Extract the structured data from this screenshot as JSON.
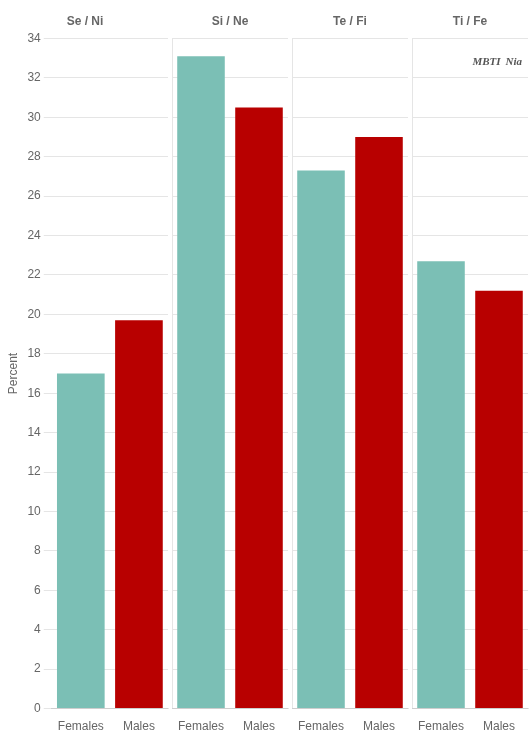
{
  "chart_data": [
    {
      "type": "bar",
      "title": "Se / Ni",
      "categories": [
        "Females",
        "Males"
      ],
      "values": [
        17.0,
        19.7
      ],
      "colors": [
        "#7BBFB5",
        "#B80000"
      ],
      "ylabel": "Percent",
      "ylim": [
        0,
        34
      ],
      "yticks": [
        0,
        2,
        4,
        6,
        8,
        10,
        12,
        14,
        16,
        18,
        20,
        22,
        24,
        26,
        28,
        30,
        32,
        34
      ],
      "grid": true
    },
    {
      "type": "bar",
      "title": "Si / Ne",
      "categories": [
        "Females",
        "Males"
      ],
      "values": [
        33.1,
        30.5
      ],
      "colors": [
        "#7BBFB5",
        "#B80000"
      ],
      "ylim": [
        0,
        34
      ],
      "yticks": [
        0,
        2,
        4,
        6,
        8,
        10,
        12,
        14,
        16,
        18,
        20,
        22,
        24,
        26,
        28,
        30,
        32,
        34
      ],
      "grid": true,
      "tick_labels": "x"
    },
    {
      "type": "bar",
      "title": "Te / Fi",
      "categories": [
        "Females",
        "Males"
      ],
      "values": [
        27.3,
        29.0
      ],
      "colors": [
        "#7BBFB5",
        "#B80000"
      ],
      "ylim": [
        0,
        34
      ],
      "yticks": [
        0,
        2,
        4,
        6,
        8,
        10,
        12,
        14,
        16,
        18,
        20,
        22,
        24,
        26,
        28,
        30,
        32,
        34
      ],
      "grid": true,
      "tick_labels": "x"
    },
    {
      "type": "bar",
      "title": "Ti / Fe",
      "categories": [
        "Females",
        "Males"
      ],
      "values": [
        22.7,
        21.2
      ],
      "colors": [
        "#7BBFB5",
        "#B80000"
      ],
      "ylim": [
        0,
        34
      ],
      "yticks": [
        0,
        2,
        4,
        6,
        8,
        10,
        12,
        14,
        16,
        18,
        20,
        22,
        24,
        26,
        28,
        30,
        32,
        34
      ],
      "grid": true,
      "tick_labels": "x",
      "annotations": [
        "MBTI",
        "Nia"
      ]
    }
  ]
}
